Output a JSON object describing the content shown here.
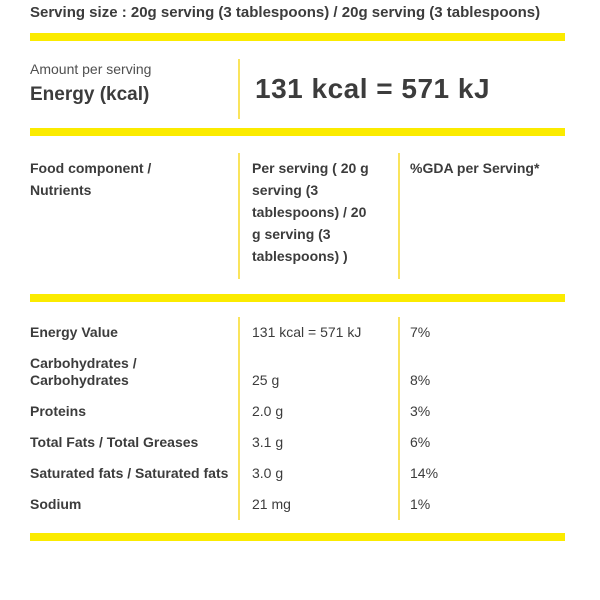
{
  "serving_size": "Serving size : 20g serving (3 tablespoons) / 20g serving (3 tablespoons)",
  "energy_panel": {
    "amount_label": "Amount per serving",
    "name": "Energy (kcal)",
    "value": "131 kcal = 571 kJ"
  },
  "table": {
    "headers": [
      "Food component / Nutrients",
      "Per serving ( 20 g serving (3 tablespoons) / 20 g serving (3 tablespoons) )",
      "%GDA per Serving*"
    ],
    "rows": [
      {
        "nutrient": "Energy Value",
        "per_serving": "131 kcal = 571 kJ",
        "gda": "7%"
      },
      {
        "nutrient": "Carbohydrates / Carbohydrates",
        "per_serving": "25 g",
        "gda": "8%"
      },
      {
        "nutrient": "Proteins",
        "per_serving": "2.0 g",
        "gda": "3%"
      },
      {
        "nutrient": "Total Fats / Total Greases",
        "per_serving": "3.1 g",
        "gda": "6%"
      },
      {
        "nutrient": "Saturated fats / Saturated fats",
        "per_serving": "3.0 g",
        "gda": "14%"
      },
      {
        "nutrient": "Sodium",
        "per_serving": "21 mg",
        "gda": "1%"
      }
    ]
  },
  "colors": {
    "bar_yellow": "#FBEB00",
    "rule_yellow": "#FAE45C",
    "text_dark": "#3C3C3C",
    "text_muted": "#4F4F4F"
  }
}
